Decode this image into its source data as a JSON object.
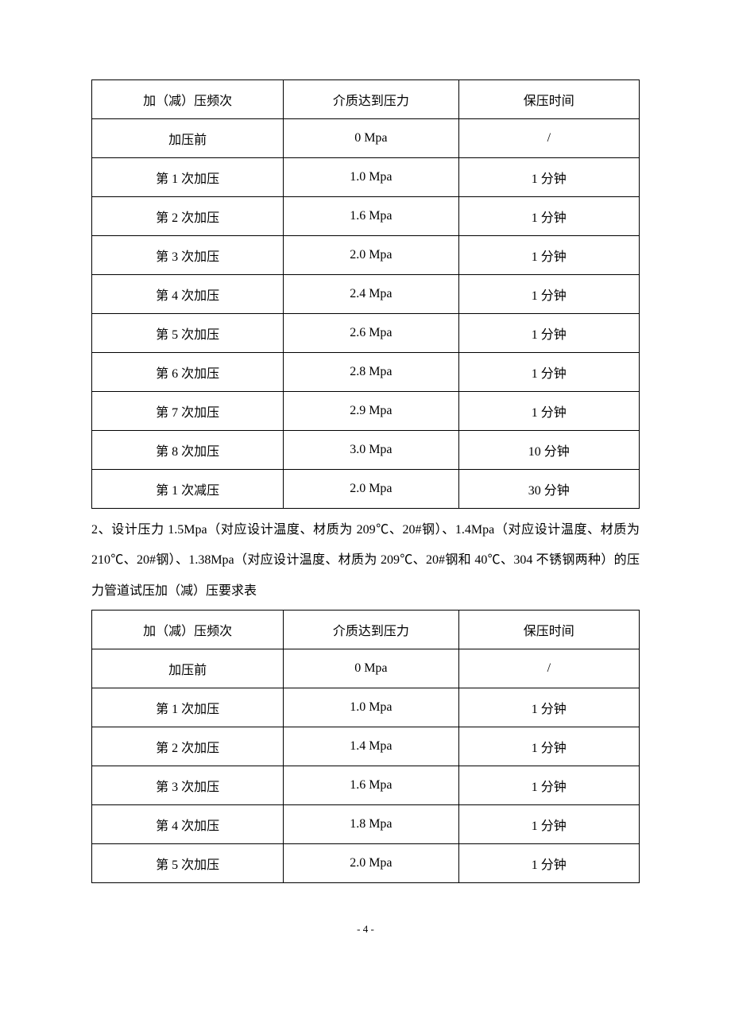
{
  "table1": {
    "columns": [
      "加（减）压频次",
      "介质达到压力",
      "保压时间"
    ],
    "rows": [
      [
        "加压前",
        "0 Mpa",
        "/"
      ],
      [
        "第 1 次加压",
        "1.0 Mpa",
        "1 分钟"
      ],
      [
        "第 2 次加压",
        "1.6 Mpa",
        "1 分钟"
      ],
      [
        "第 3 次加压",
        "2.0 Mpa",
        "1 分钟"
      ],
      [
        "第 4 次加压",
        "2.4 Mpa",
        "1 分钟"
      ],
      [
        "第 5 次加压",
        "2.6 Mpa",
        "1 分钟"
      ],
      [
        "第 6 次加压",
        "2.8 Mpa",
        "1 分钟"
      ],
      [
        "第 7 次加压",
        "2.9 Mpa",
        "1 分钟"
      ],
      [
        "第 8 次加压",
        "3.0 Mpa",
        "10 分钟"
      ],
      [
        "第 1 次减压",
        "2.0 Mpa",
        "30 分钟"
      ]
    ],
    "col_widths": [
      "35%",
      "32%",
      "33%"
    ]
  },
  "paragraph": "2、设计压力 1.5Mpa（对应设计温度、材质为 209℃、20#钢）、1.4Mpa（对应设计温度、材质为 210℃、20#钢）、1.38Mpa（对应设计温度、材质为 209℃、20#钢和 40℃、304 不锈钢两种）的压力管道试压加（减）压要求表",
  "table2": {
    "columns": [
      "加（减）压频次",
      "介质达到压力",
      "保压时间"
    ],
    "rows": [
      [
        "加压前",
        "0 Mpa",
        "/"
      ],
      [
        "第 1 次加压",
        "1.0 Mpa",
        "1 分钟"
      ],
      [
        "第 2 次加压",
        "1.4 Mpa",
        "1 分钟"
      ],
      [
        "第 3 次加压",
        "1.6 Mpa",
        "1 分钟"
      ],
      [
        "第 4 次加压",
        "1.8 Mpa",
        "1 分钟"
      ],
      [
        "第 5 次加压",
        "2.0 Mpa",
        "1 分钟"
      ]
    ],
    "col_widths": [
      "35%",
      "32%",
      "33%"
    ]
  },
  "page_number": "- 4 -",
  "style": {
    "text_color": "#000000",
    "background_color": "#ffffff",
    "border_color": "#000000",
    "font_size_body": 16,
    "font_size_pagenum": 13,
    "line_height_para": 2.4
  }
}
